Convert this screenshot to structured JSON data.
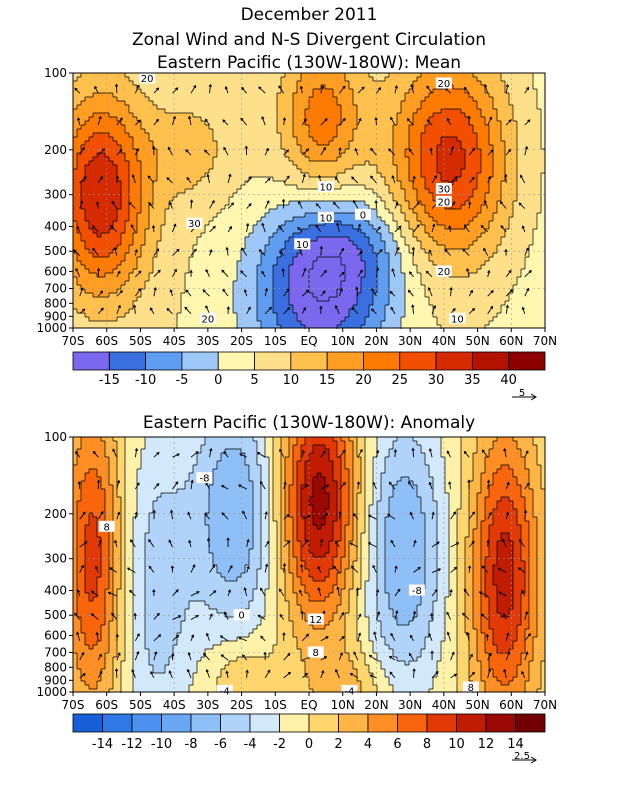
{
  "header": {
    "date": "December 2011",
    "title": "Zonal Wind and N-S Divergent Circulation"
  },
  "chart_data": [
    {
      "type": "heatmap",
      "title": "Eastern Pacific (130W-180W): Mean",
      "x_tick_labels": [
        "70S",
        "60S",
        "50S",
        "40S",
        "30S",
        "20S",
        "10S",
        "EQ",
        "10N",
        "20N",
        "30N",
        "40N",
        "50N",
        "60N",
        "70N"
      ],
      "xlim": [
        -70,
        70
      ],
      "y_tick_labels": [
        "100",
        "200",
        "300",
        "400",
        "500",
        "600",
        "700",
        "800",
        "900",
        "1000"
      ],
      "y_levels": [
        100,
        200,
        300,
        400,
        500,
        600,
        700,
        800,
        900,
        1000
      ],
      "y_scale": "log (pressure, hPa)",
      "colorbar": {
        "levels": [
          -20,
          -15,
          -10,
          -5,
          0,
          5,
          10,
          15,
          20,
          25,
          30,
          35,
          40,
          45
        ],
        "tick_labels": [
          "-15",
          "-10",
          "-5",
          "0",
          "5",
          "10",
          "15",
          "20",
          "25",
          "30",
          "35",
          "40"
        ],
        "colors": [
          "#7b68ee",
          "#3a6fe0",
          "#5e9df0",
          "#9ec8f7",
          "#fff6b0",
          "#ffe08a",
          "#ffc04e",
          "#ff9e22",
          "#ff7a00",
          "#f25000",
          "#d62a00",
          "#b41200",
          "#8c0000"
        ]
      },
      "contour_labels": [
        "20",
        "30",
        "20",
        "10",
        "20",
        "10",
        "10",
        "0",
        "20",
        "30",
        "20",
        "10"
      ],
      "vector_reference": "5",
      "anomaly": false
    },
    {
      "type": "heatmap",
      "title": "Eastern Pacific (130W-180W): Anomaly",
      "x_tick_labels": [
        "70S",
        "60S",
        "50S",
        "40S",
        "30S",
        "20S",
        "10S",
        "EQ",
        "10N",
        "20N",
        "30N",
        "40N",
        "50N",
        "60N",
        "70N"
      ],
      "xlim": [
        -70,
        70
      ],
      "y_tick_labels": [
        "100",
        "200",
        "300",
        "400",
        "500",
        "600",
        "700",
        "800",
        "900",
        "1000"
      ],
      "y_levels": [
        100,
        200,
        300,
        400,
        500,
        600,
        700,
        800,
        900,
        1000
      ],
      "y_scale": "log (pressure, hPa)",
      "colorbar": {
        "levels": [
          -16,
          -14,
          -12,
          -10,
          -8,
          -6,
          -4,
          -2,
          0,
          2,
          4,
          6,
          8,
          10,
          12,
          14,
          16
        ],
        "tick_labels": [
          "-14",
          "-12",
          "-10",
          "-8",
          "-6",
          "-4",
          "-2",
          "0",
          "2",
          "4",
          "6",
          "8",
          "10",
          "12",
          "14"
        ],
        "colors": [
          "#1860d8",
          "#2f7ae6",
          "#4a92ee",
          "#6aa8f3",
          "#8ebff6",
          "#b0d3f9",
          "#d2e8fb",
          "#fff2a8",
          "#ffd56e",
          "#ffb446",
          "#ff8e24",
          "#f8650c",
          "#e23a06",
          "#c01c02",
          "#9a0804",
          "#720000"
        ]
      },
      "contour_labels": [
        "8",
        "-8",
        "12",
        "8",
        "-4",
        "-8",
        "8",
        "0",
        "-4"
      ],
      "vector_reference": "2.5",
      "anomaly": true
    }
  ]
}
